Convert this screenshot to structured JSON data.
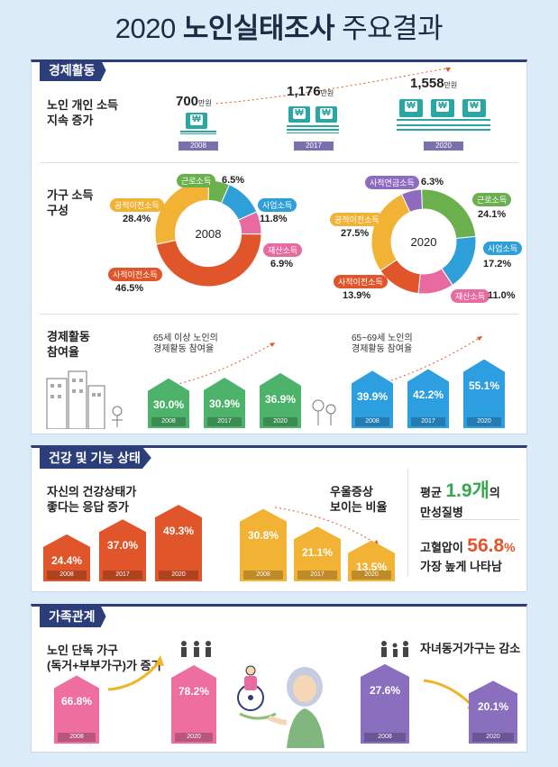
{
  "title": {
    "year": "2020",
    "bold": "노인실태조사",
    "rest": "주요결과"
  },
  "econ": {
    "tag": "경제활동",
    "income": {
      "label_1": "노인 개인 소득",
      "label_2": "지속 증가",
      "items": [
        {
          "value": "700",
          "unit": "만원",
          "year": "2008"
        },
        {
          "value": "1,176",
          "unit": "만원",
          "year": "2017"
        },
        {
          "value": "1,558",
          "unit": "만원",
          "year": "2020"
        }
      ]
    },
    "composition": {
      "label_1": "가구 소득",
      "label_2": "구성",
      "donut_2008": {
        "center": "2008",
        "slices": [
          {
            "name": "근로소득",
            "value": "6.5%",
            "pct": 6.5,
            "color": "#6ab04c"
          },
          {
            "name": "사업소득",
            "value": "11.8%",
            "pct": 11.8,
            "color": "#2e9fd8"
          },
          {
            "name": "재산소득",
            "value": "6.9%",
            "pct": 6.9,
            "color": "#e86aa0"
          },
          {
            "name": "사적이전소득",
            "value": "46.5%",
            "pct": 46.5,
            "color": "#e0562a"
          },
          {
            "name": "공적이전소득",
            "value": "28.4%",
            "pct": 28.4,
            "color": "#f2b233"
          }
        ]
      },
      "donut_2020": {
        "center": "2020",
        "slices": [
          {
            "name": "사적연금소득",
            "value": "6.3%",
            "pct": 6.3,
            "color": "#8e6bbf"
          },
          {
            "name": "근로소득",
            "value": "24.1%",
            "pct": 24.1,
            "color": "#6ab04c"
          },
          {
            "name": "사업소득",
            "value": "17.2%",
            "pct": 17.2,
            "color": "#2e9fd8"
          },
          {
            "name": "재산소득",
            "value": "11.0%",
            "pct": 11.0,
            "color": "#e86aa0"
          },
          {
            "name": "사적이전소득",
            "value": "13.9%",
            "pct": 13.9,
            "color": "#e0562a"
          },
          {
            "name": "공적이전소득",
            "value": "27.5%",
            "pct": 27.5,
            "color": "#f2b233"
          }
        ]
      }
    },
    "participation": {
      "label_1": "경제활동",
      "label_2": "참여율",
      "group_a": {
        "caption_1": "65세 이상 노인의",
        "caption_2": "경제활동 참여율",
        "bars": [
          {
            "value": "30.0%",
            "year": "2008"
          },
          {
            "value": "30.9%",
            "year": "2017"
          },
          {
            "value": "36.9%",
            "year": "2020"
          }
        ]
      },
      "group_b": {
        "caption_1": "65~69세 노인의",
        "caption_2": "경제활동 참여율",
        "bars": [
          {
            "value": "39.9%",
            "year": "2008"
          },
          {
            "value": "42.2%",
            "year": "2017"
          },
          {
            "value": "55.1%",
            "year": "2020"
          }
        ]
      }
    }
  },
  "health": {
    "tag": "건강 및 기능 상태",
    "good": {
      "label_1": "자신의 건강상태가",
      "label_2": "좋다는 응답 증가",
      "bars": [
        {
          "value": "24.4%",
          "year": "2008"
        },
        {
          "value": "37.0%",
          "year": "2017"
        },
        {
          "value": "49.3%",
          "year": "2020"
        }
      ]
    },
    "depression": {
      "label_1": "우울증상",
      "label_2": "보이는 비율",
      "bars": [
        {
          "value": "30.8%",
          "year": "2008"
        },
        {
          "value": "21.1%",
          "year": "2017"
        },
        {
          "value": "13.5%",
          "year": "2020"
        }
      ]
    },
    "chronic": {
      "prefix": "평균",
      "value": "1.9개",
      "suffix": "의",
      "line2": "만성질병"
    },
    "bp": {
      "prefix": "고혈압이",
      "value": "56.8",
      "unit": "%",
      "line2": "가장 높게 나타남"
    }
  },
  "family": {
    "tag": "가족관계",
    "alone": {
      "label_1": "노인 단독 가구",
      "label_2": "(독거+부부가구)가 증가",
      "bars": [
        {
          "value": "66.8%",
          "year": "2008"
        },
        {
          "value": "78.2%",
          "year": "2020"
        }
      ]
    },
    "children": {
      "label": "자녀동거가구는 감소",
      "bars": [
        {
          "value": "27.6%",
          "year": "2008"
        },
        {
          "value": "20.1%",
          "year": "2020"
        }
      ]
    }
  }
}
